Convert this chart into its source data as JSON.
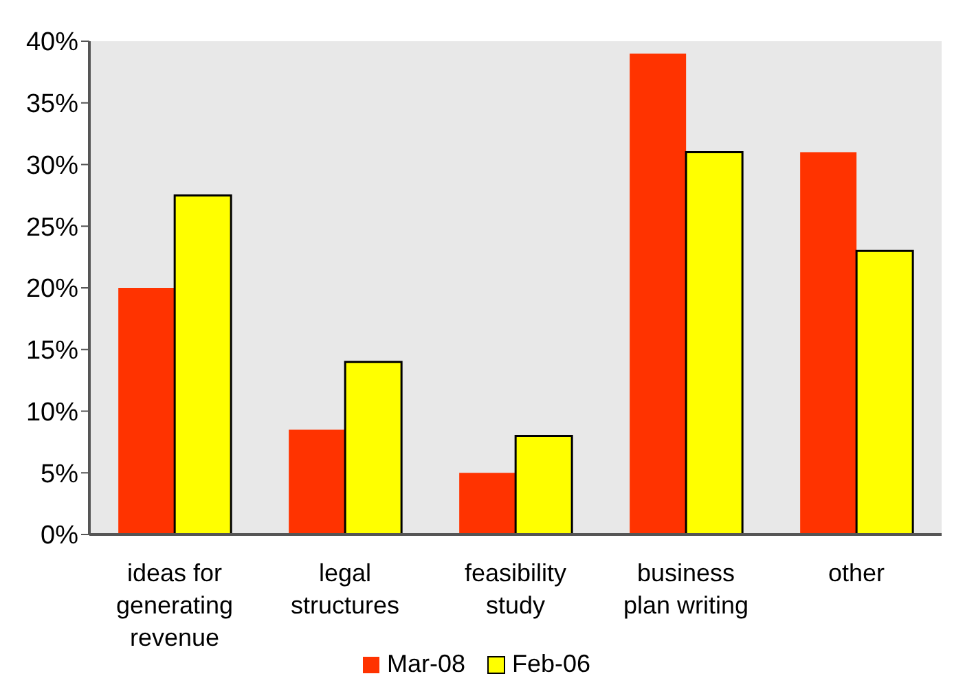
{
  "chart_data": {
    "type": "bar",
    "categories": [
      "ideas for generating revenue",
      "legal structures",
      "feasibility study",
      "business plan writing",
      "other"
    ],
    "series": [
      {
        "name": "Mar-08",
        "color": "#ff3300",
        "values": [
          20,
          8.5,
          5,
          39,
          31
        ]
      },
      {
        "name": "Feb-06",
        "color": "#ffff00",
        "values": [
          27.5,
          14,
          8,
          31,
          23
        ]
      }
    ],
    "ylim": [
      0,
      40
    ],
    "yticks": [
      {
        "value": 0,
        "label": "0%"
      },
      {
        "value": 5,
        "label": "5%"
      },
      {
        "value": 10,
        "label": "10%"
      },
      {
        "value": 15,
        "label": "15%"
      },
      {
        "value": 20,
        "label": "20%"
      },
      {
        "value": 25,
        "label": "25%"
      },
      {
        "value": 30,
        "label": "30%"
      },
      {
        "value": 35,
        "label": "35%"
      },
      {
        "value": 40,
        "label": "40%"
      }
    ],
    "legend": "bottom"
  }
}
